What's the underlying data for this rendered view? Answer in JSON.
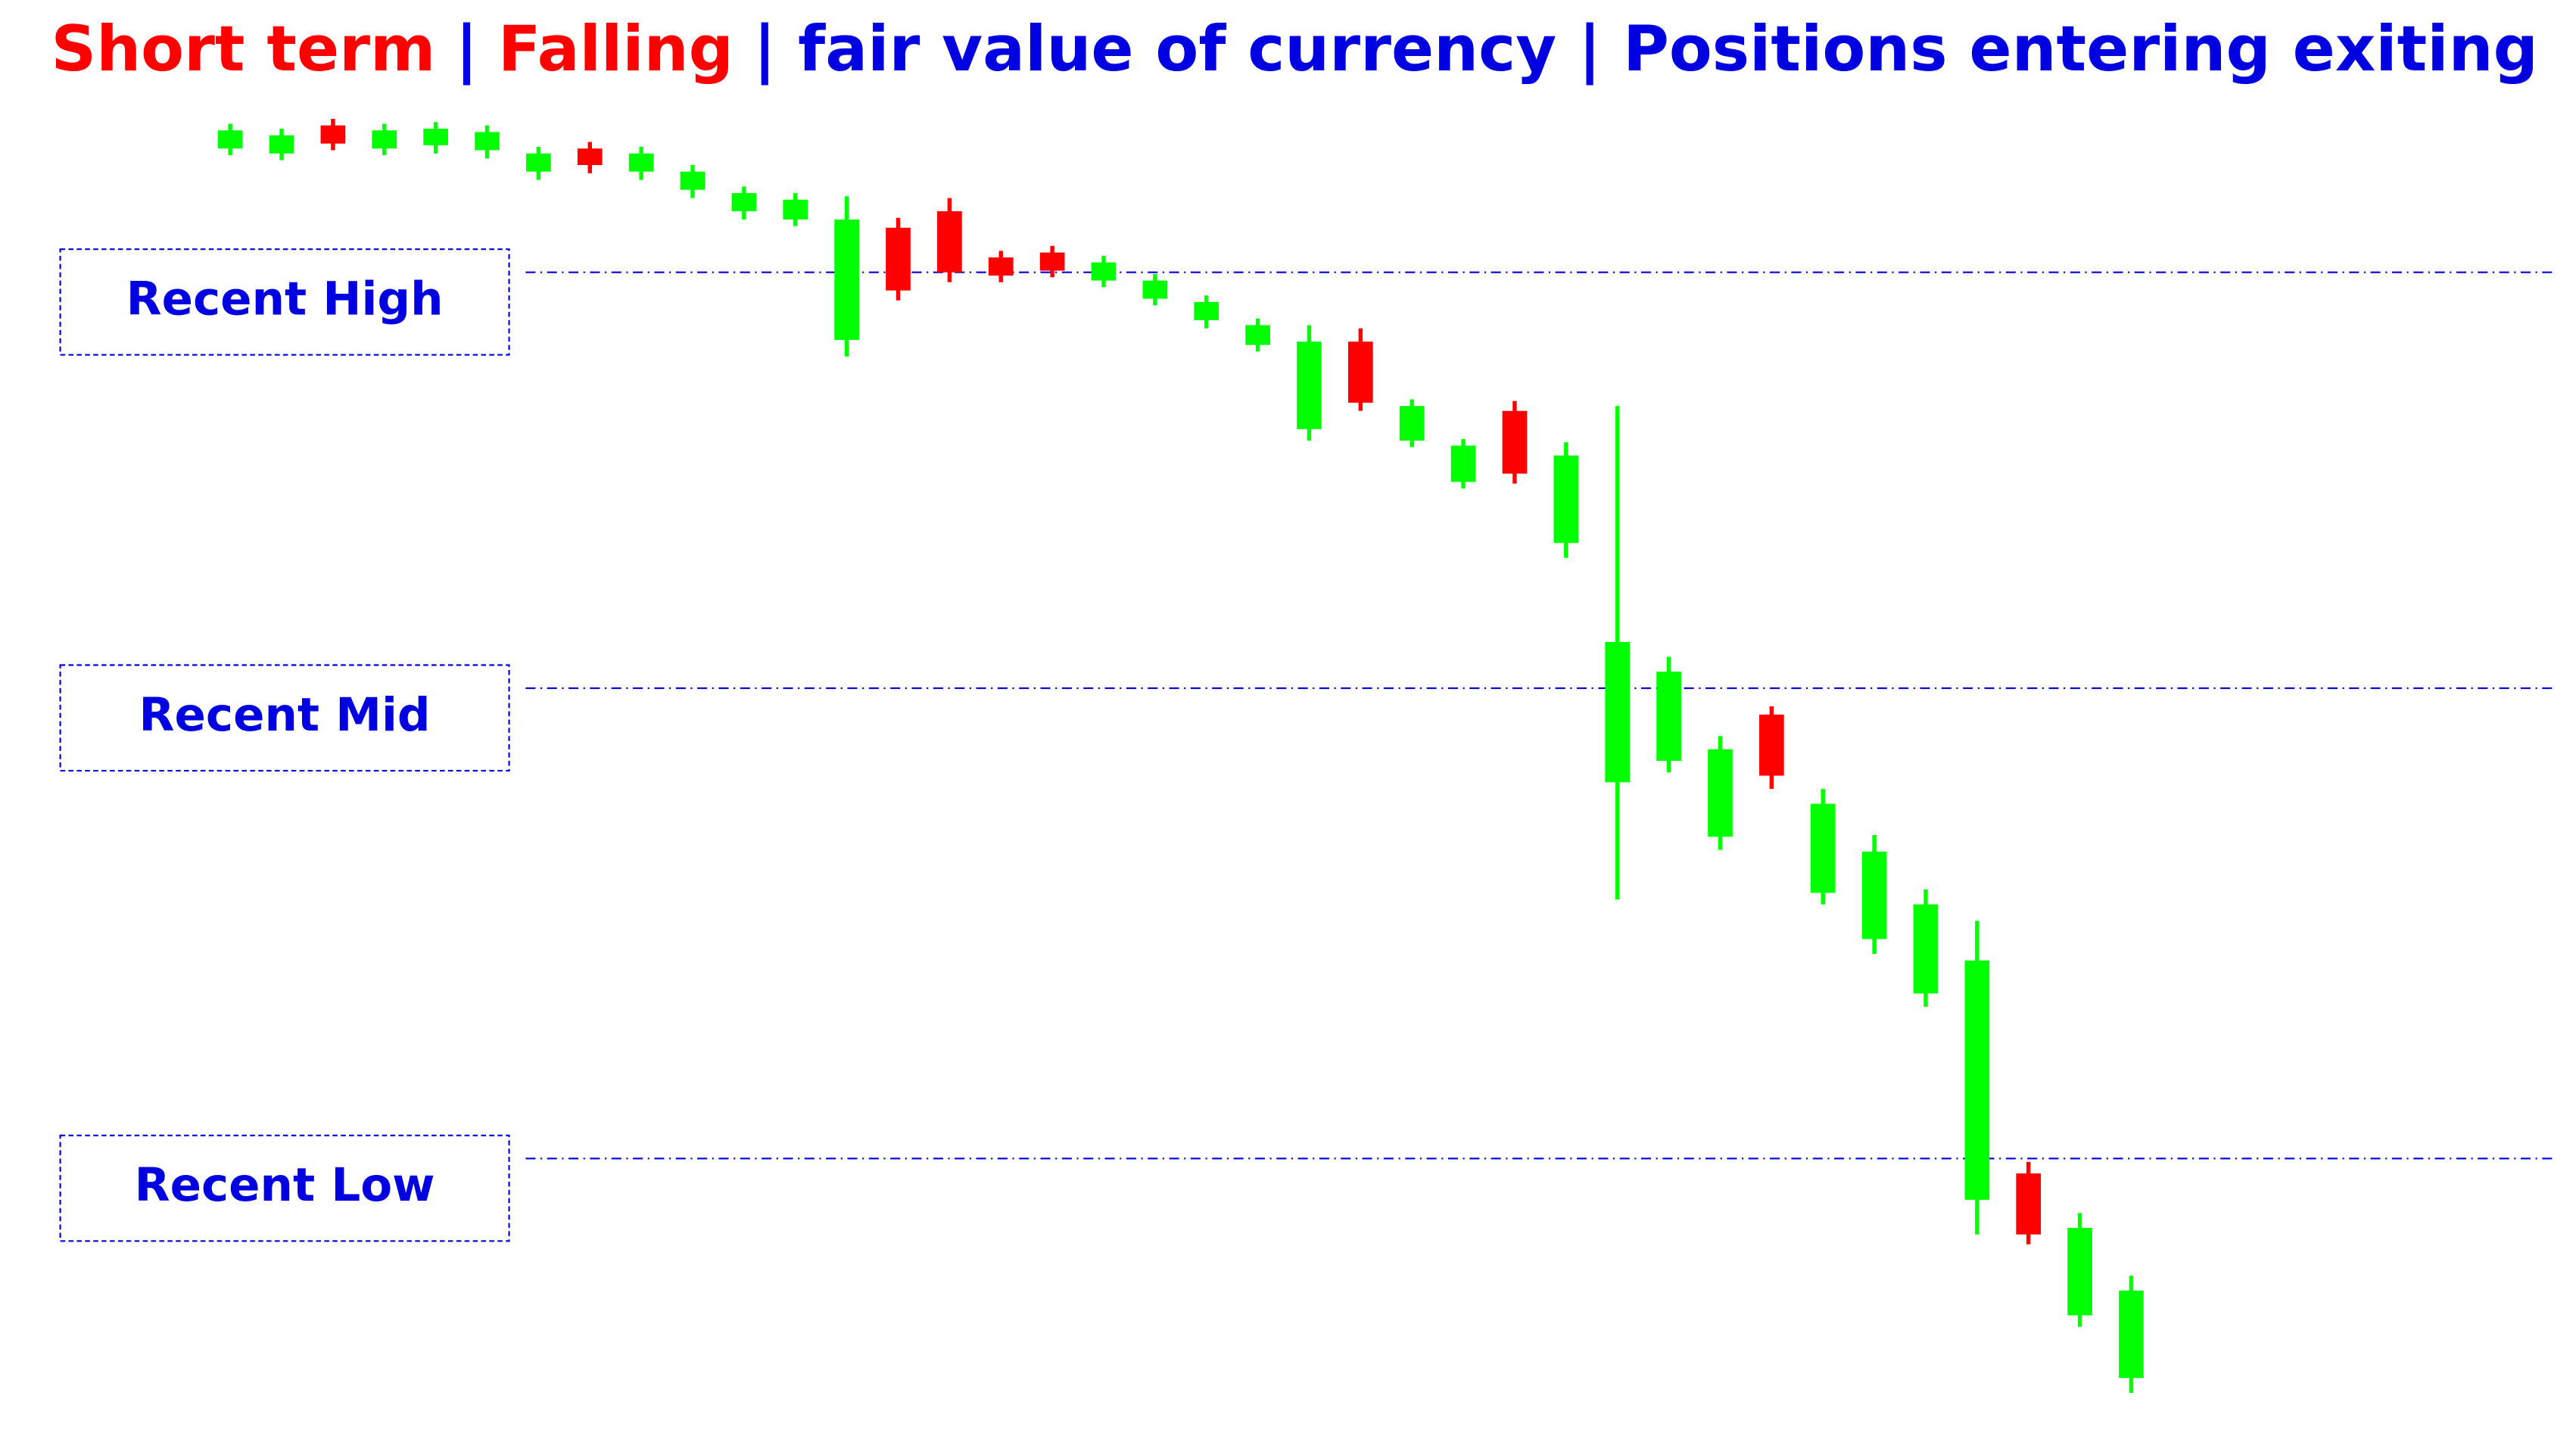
{
  "chart_data": {
    "type": "candlestick",
    "title_parts": [
      {
        "text": "Short term",
        "color": "#ff0000"
      },
      {
        "text": "|",
        "color": "#0000e0"
      },
      {
        "text": "Falling",
        "color": "#ff0000"
      },
      {
        "text": "| fair value of currency | Positions entering exiting",
        "color": "#0000e0"
      }
    ],
    "up_color": "#00ff00",
    "down_color": "#ff0000",
    "ylim": [
      0,
      900
    ],
    "series": [
      {
        "open": [
          788,
          785,
          802,
          788,
          790,
          787,
          774,
          788,
          774,
          763,
          750,
          745,
          672,
          740,
          750,
          722,
          725,
          708,
          697,
          684,
          669,
          618,
          671,
          611,
          586,
          629,
          549,
          404,
          417,
          371,
          445,
          337,
          309,
          276,
          151,
          167,
          81,
          43
        ],
        "high": [
          803,
          800,
          806,
          803,
          804,
          802,
          789,
          792,
          789,
          778,
          765,
          761,
          759,
          746,
          758,
          726,
          729,
          723,
          712,
          699,
          685,
          681,
          679,
          636,
          612,
          635,
          610,
          632,
          480,
          432,
          450,
          400,
          372,
          339,
          320,
          174,
          143,
          105
        ],
        "low": [
          784,
          781,
          787,
          784,
          785,
          782,
          769,
          773,
          769,
          758,
          745,
          741,
          662,
          696,
          707,
          707,
          710,
          704,
          693,
          679,
          665,
          611,
          629,
          607,
          582,
          585,
          540,
          333,
          410,
          363,
          400,
          330,
          300,
          268,
          130,
          124,
          74,
          34
        ],
        "close": [
          799,
          796,
          791,
          799,
          800,
          798,
          785,
          778,
          785,
          774,
          761,
          757,
          745,
          702,
          713,
          711,
          714,
          719,
          708,
          695,
          681,
          671,
          634,
          632,
          608,
          591,
          602,
          489,
          471,
          424,
          408,
          391,
          362,
          330,
          296,
          130,
          134,
          96
        ]
      }
    ],
    "levels": [
      {
        "label": "Recent High",
        "value": 713
      },
      {
        "label": "Recent Mid",
        "value": 461
      },
      {
        "label": "Recent Low",
        "value": 176
      }
    ],
    "level_color": "#0000e0"
  }
}
